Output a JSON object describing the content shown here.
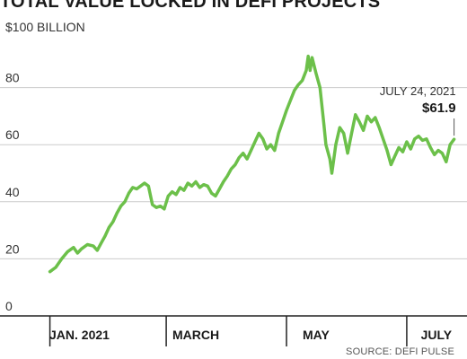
{
  "title": "TOTAL VALUE LOCKED IN DEFI PROJECTS",
  "source": "SOURCE: DEFI PULSE",
  "colors": {
    "line": "#6cc04a",
    "grid": "#cccccc",
    "axis": "#222222",
    "text": "#333333"
  },
  "chart_data": {
    "type": "line",
    "title": "TOTAL VALUE LOCKED IN DEFI PROJECTS",
    "ylabel": "$100 BILLION",
    "ylim": [
      0,
      100
    ],
    "yticks": [
      0,
      20,
      40,
      60,
      80
    ],
    "xlim": [
      "2020-12-23",
      "2021-07-26"
    ],
    "xticks": [
      {
        "date": "2020-12-31",
        "label": ""
      },
      {
        "date": "2021-01-15",
        "label": "JAN. 2021"
      },
      {
        "date": "2021-02-28",
        "label": ""
      },
      {
        "date": "2021-03-15",
        "label": "MARCH"
      },
      {
        "date": "2021-04-30",
        "label": ""
      },
      {
        "date": "2021-05-15",
        "label": "MAY"
      },
      {
        "date": "2021-06-30",
        "label": ""
      },
      {
        "date": "2021-07-15",
        "label": "JULY"
      }
    ],
    "grid": true,
    "annotation": {
      "date": "2021-07-24",
      "label": "JULY 24, 2021",
      "value_label": "$61.9",
      "value": 61.9
    },
    "series": [
      {
        "points": [
          [
            "2020-12-31",
            15.5
          ],
          [
            "2021-01-03",
            17.0
          ],
          [
            "2021-01-06",
            20.0
          ],
          [
            "2021-01-09",
            22.5
          ],
          [
            "2021-01-12",
            24.0
          ],
          [
            "2021-01-14",
            22.0
          ],
          [
            "2021-01-16",
            23.5
          ],
          [
            "2021-01-19",
            25.0
          ],
          [
            "2021-01-22",
            24.5
          ],
          [
            "2021-01-24",
            23.0
          ],
          [
            "2021-01-26",
            25.5
          ],
          [
            "2021-01-28",
            28.0
          ],
          [
            "2021-01-30",
            31.0
          ],
          [
            "2021-02-01",
            33.0
          ],
          [
            "2021-02-03",
            36.0
          ],
          [
            "2021-02-05",
            38.5
          ],
          [
            "2021-02-07",
            40.0
          ],
          [
            "2021-02-09",
            43.0
          ],
          [
            "2021-02-11",
            45.0
          ],
          [
            "2021-02-13",
            44.5
          ],
          [
            "2021-02-15",
            45.5
          ],
          [
            "2021-02-17",
            46.5
          ],
          [
            "2021-02-19",
            45.5
          ],
          [
            "2021-02-21",
            39.0
          ],
          [
            "2021-02-23",
            38.0
          ],
          [
            "2021-02-25",
            38.5
          ],
          [
            "2021-02-27",
            37.5
          ],
          [
            "2021-03-01",
            42.0
          ],
          [
            "2021-03-03",
            43.5
          ],
          [
            "2021-03-05",
            42.5
          ],
          [
            "2021-03-07",
            45.0
          ],
          [
            "2021-03-09",
            44.0
          ],
          [
            "2021-03-11",
            46.5
          ],
          [
            "2021-03-13",
            45.5
          ],
          [
            "2021-03-15",
            47.0
          ],
          [
            "2021-03-17",
            45.0
          ],
          [
            "2021-03-19",
            46.0
          ],
          [
            "2021-03-21",
            45.5
          ],
          [
            "2021-03-23",
            43.0
          ],
          [
            "2021-03-25",
            42.0
          ],
          [
            "2021-03-27",
            44.5
          ],
          [
            "2021-03-29",
            47.0
          ],
          [
            "2021-03-31",
            49.0
          ],
          [
            "2021-04-02",
            51.5
          ],
          [
            "2021-04-04",
            53.0
          ],
          [
            "2021-04-06",
            55.5
          ],
          [
            "2021-04-08",
            57.0
          ],
          [
            "2021-04-10",
            55.0
          ],
          [
            "2021-04-12",
            58.0
          ],
          [
            "2021-04-14",
            61.0
          ],
          [
            "2021-04-16",
            64.0
          ],
          [
            "2021-04-18",
            62.0
          ],
          [
            "2021-04-20",
            58.5
          ],
          [
            "2021-04-22",
            60.0
          ],
          [
            "2021-04-24",
            58.0
          ],
          [
            "2021-04-26",
            64.0
          ],
          [
            "2021-04-28",
            68.0
          ],
          [
            "2021-04-30",
            72.0
          ],
          [
            "2021-05-02",
            75.5
          ],
          [
            "2021-05-04",
            79.0
          ],
          [
            "2021-05-06",
            81.0
          ],
          [
            "2021-05-08",
            82.5
          ],
          [
            "2021-05-10",
            86.0
          ],
          [
            "2021-05-11",
            91.0
          ],
          [
            "2021-05-12",
            86.0
          ],
          [
            "2021-05-13",
            90.5
          ],
          [
            "2021-05-15",
            85.0
          ],
          [
            "2021-05-17",
            80.0
          ],
          [
            "2021-05-19",
            67.0
          ],
          [
            "2021-05-20",
            60.0
          ],
          [
            "2021-05-22",
            55.0
          ],
          [
            "2021-05-23",
            50.0
          ],
          [
            "2021-05-25",
            60.0
          ],
          [
            "2021-05-27",
            66.0
          ],
          [
            "2021-05-29",
            64.0
          ],
          [
            "2021-05-31",
            57.0
          ],
          [
            "2021-06-02",
            64.0
          ],
          [
            "2021-06-04",
            70.5
          ],
          [
            "2021-06-06",
            68.0
          ],
          [
            "2021-06-08",
            65.0
          ],
          [
            "2021-06-10",
            70.0
          ],
          [
            "2021-06-12",
            68.0
          ],
          [
            "2021-06-14",
            69.5
          ],
          [
            "2021-06-16",
            66.0
          ],
          [
            "2021-06-18",
            62.0
          ],
          [
            "2021-06-20",
            58.0
          ],
          [
            "2021-06-22",
            53.0
          ],
          [
            "2021-06-24",
            56.0
          ],
          [
            "2021-06-26",
            59.0
          ],
          [
            "2021-06-28",
            57.5
          ],
          [
            "2021-06-30",
            61.0
          ],
          [
            "2021-07-02",
            58.5
          ],
          [
            "2021-07-04",
            62.0
          ],
          [
            "2021-07-06",
            63.0
          ],
          [
            "2021-07-08",
            61.5
          ],
          [
            "2021-07-10",
            62.0
          ],
          [
            "2021-07-12",
            59.0
          ],
          [
            "2021-07-14",
            56.5
          ],
          [
            "2021-07-16",
            58.0
          ],
          [
            "2021-07-18",
            57.0
          ],
          [
            "2021-07-20",
            54.0
          ],
          [
            "2021-07-22",
            60.0
          ],
          [
            "2021-07-24",
            61.9
          ]
        ]
      }
    ]
  }
}
